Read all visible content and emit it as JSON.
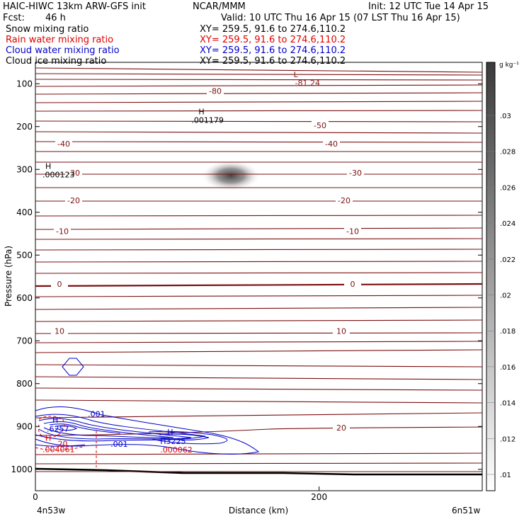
{
  "header": {
    "title_left": "HAIC-HIWC 13km ARW-GFS init",
    "title_mid": "NCAR/MMM",
    "init": "Init: 12 UTC Tue 14 Apr 15",
    "fcst_label": "Fcst:",
    "fcst_value": "46 h",
    "valid": "Valid: 10 UTC Thu 16 Apr 15 (07 LST Thu 16 Apr 15)"
  },
  "fields": [
    {
      "name": "Snow mixing ratio",
      "xy": "XY= 259.5, 91.6 to 274.6,110.2",
      "color": "#000000"
    },
    {
      "name": "Rain water mixing ratio",
      "xy": "XY= 259.5, 91.6 to 274.6,110.2",
      "color": "#e00000"
    },
    {
      "name": "Cloud water mixing ratio",
      "xy": "XY= 259.5, 91.6 to 274.6,110.2",
      "color": "#0000cc"
    },
    {
      "name": "Cloud ice mixing ratio",
      "xy": "XY= 259.5, 91.6 to 274.6,110.2",
      "color": "#000000"
    }
  ],
  "chart_data": {
    "type": "contour",
    "xlabel": "Distance (km)",
    "ylabel": "Pressure (hPa)",
    "xlim": [
      0,
      315
    ],
    "ylim": [
      1050,
      50
    ],
    "x_ticks": [
      0,
      200
    ],
    "y_ticks": [
      100,
      200,
      300,
      400,
      500,
      600,
      700,
      800,
      900,
      1000
    ],
    "x_endpoints": [
      "4n53w",
      "6n51w"
    ],
    "colorbar": {
      "unit": "g kg⁻¹",
      "labels": [
        ".03",
        ".028",
        ".026",
        ".024",
        ".022",
        ".02",
        ".018",
        ".016",
        ".014",
        ".012",
        ".01"
      ]
    },
    "temperature_contours": [
      {
        "label": "-80",
        "p": 117
      },
      {
        "label": "-50",
        "p": 197
      },
      {
        "label": "-40",
        "p": 240
      },
      {
        "label": "-30",
        "p": 308
      },
      {
        "label": "-20",
        "p": 372
      },
      {
        "label": "-10",
        "p": 444
      },
      {
        "label": "0",
        "p": 567
      },
      {
        "label": "10",
        "p": 677
      },
      {
        "label": "20",
        "p": 903
      }
    ],
    "annotations": [
      {
        "text": "L",
        "x": 182,
        "p": 78,
        "color": "#8b1a1a"
      },
      {
        "text": "-81.24",
        "x": 183,
        "p": 98,
        "color": "#8b1a1a"
      },
      {
        "text": "H",
        "x": 115,
        "p": 165,
        "color": "#000000"
      },
      {
        "text": ".001179",
        "x": 110,
        "p": 185,
        "color": "#000000"
      },
      {
        "text": "H",
        "x": 7,
        "p": 292,
        "color": "#000000"
      },
      {
        "text": ".000123",
        "x": 5,
        "p": 312,
        "color": "#000000"
      },
      {
        "text": "H",
        "x": 12,
        "p": 885,
        "color": "#0000cc"
      },
      {
        "text": ".001",
        "x": 37,
        "p": 871,
        "color": "#0000cc"
      },
      {
        "text": ".6257",
        "x": 8,
        "p": 905,
        "color": "#0000cc"
      },
      {
        "text": "H",
        "x": 7,
        "p": 927,
        "color": "#e00000"
      },
      {
        "text": ".20",
        "x": 14,
        "p": 940,
        "color": "#e00000"
      },
      {
        "text": ".004061",
        "x": 5,
        "p": 953,
        "color": "#e00000"
      },
      {
        "text": ".001",
        "x": 53,
        "p": 941,
        "color": "#0000cc"
      },
      {
        "text": "H",
        "x": 93,
        "p": 913,
        "color": "#0000cc"
      },
      {
        "text": "H3225",
        "x": 88,
        "p": 934,
        "color": "#0000cc"
      },
      {
        "text": ".000062",
        "x": 88,
        "p": 954,
        "color": "#e00000"
      }
    ],
    "grid": false
  }
}
